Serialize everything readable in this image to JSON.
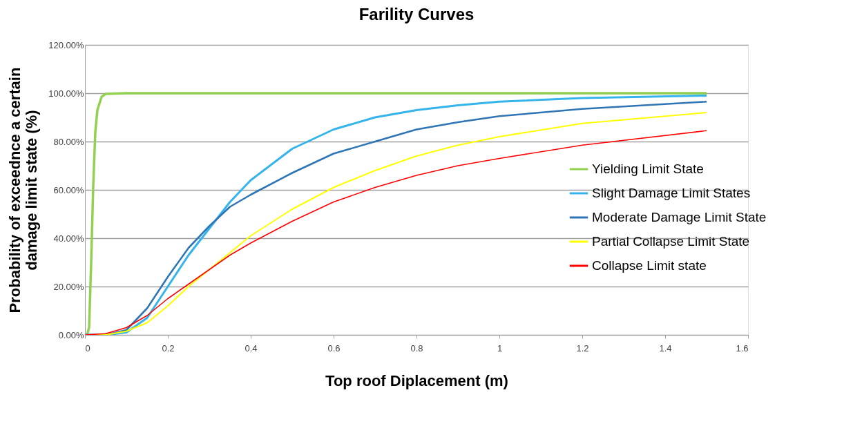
{
  "chart_data": {
    "type": "line",
    "title": "Farility Curves",
    "xlabel": "Top roof Diplacement (m)",
    "ylabel": "Probability of exceednce a certain damage limit state (%)",
    "xlim": [
      0,
      1.6
    ],
    "xticks": [
      0,
      0.2,
      0.4,
      0.6,
      0.8,
      1,
      1.2,
      1.4,
      1.6
    ],
    "ylim": [
      0,
      120
    ],
    "yticks": [
      {
        "value": 0,
        "label": "0.00%"
      },
      {
        "value": 20,
        "label": "20.00%"
      },
      {
        "value": 40,
        "label": "40.00%"
      },
      {
        "value": 60,
        "label": "60.00%"
      },
      {
        "value": 80,
        "label": "80.00%"
      },
      {
        "value": 100,
        "label": "100.00%"
      },
      {
        "value": 120,
        "label": "120.00%"
      }
    ],
    "grid": "y",
    "legend": "right",
    "marker": "none",
    "line_style": "solid",
    "series": [
      {
        "name": "Yielding Limit State",
        "color": "#92d050",
        "x": [
          0,
          0.005,
          0.01,
          0.015,
          0.02,
          0.025,
          0.03,
          0.04,
          0.05,
          0.1,
          1.5
        ],
        "values": [
          0,
          0,
          3,
          30,
          62,
          84,
          93,
          98.5,
          99.7,
          100,
          100
        ]
      },
      {
        "name": "Slight Damage Limit States",
        "color": "#35b4ec",
        "x": [
          0,
          0.05,
          0.1,
          0.15,
          0.2,
          0.25,
          0.3,
          0.35,
          0.4,
          0.5,
          0.6,
          0.7,
          0.8,
          0.9,
          1.0,
          1.2,
          1.5
        ],
        "values": [
          0,
          0,
          1,
          7,
          20,
          33,
          44,
          55,
          64,
          77,
          85,
          90,
          93,
          95,
          96.5,
          98,
          99
        ]
      },
      {
        "name": "Moderate Damage Limit State",
        "color": "#2e75b6",
        "x": [
          0,
          0.05,
          0.1,
          0.15,
          0.2,
          0.25,
          0.3,
          0.35,
          0.4,
          0.5,
          0.6,
          0.7,
          0.8,
          0.9,
          1.0,
          1.2,
          1.5
        ],
        "values": [
          0,
          0,
          2,
          11,
          24,
          36,
          45,
          53,
          58,
          67,
          75,
          80,
          85,
          88,
          90.5,
          93.5,
          96.5
        ]
      },
      {
        "name": "Partial Collapse Limit State",
        "color": "#ffff00",
        "x": [
          0,
          0.05,
          0.1,
          0.15,
          0.2,
          0.25,
          0.3,
          0.35,
          0.4,
          0.5,
          0.6,
          0.7,
          0.8,
          0.9,
          1.0,
          1.2,
          1.5
        ],
        "values": [
          0,
          0,
          1.5,
          5,
          12,
          20,
          27,
          34,
          41,
          52,
          61,
          68,
          74,
          78.5,
          82,
          87.5,
          92
        ]
      },
      {
        "name": "Collapse Limit state",
        "color": "#ff0000",
        "x": [
          0,
          0.05,
          0.1,
          0.15,
          0.2,
          0.25,
          0.3,
          0.35,
          0.4,
          0.5,
          0.6,
          0.7,
          0.8,
          0.9,
          1.0,
          1.2,
          1.5
        ],
        "values": [
          0,
          0.5,
          3,
          8,
          15,
          21,
          27,
          33,
          38,
          47,
          55,
          61,
          66,
          70,
          73,
          78.5,
          84.5
        ]
      }
    ]
  }
}
